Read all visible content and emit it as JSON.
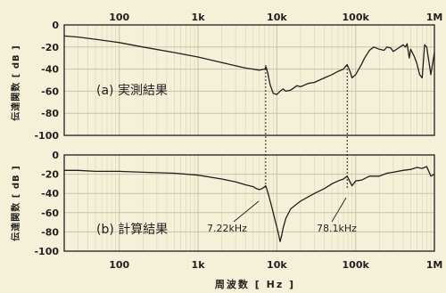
{
  "chart_data": {
    "type": "line",
    "xscale": "log",
    "xlim": [
      20,
      1000000
    ],
    "ylim": [
      -100,
      0
    ],
    "x_tick_labels": [
      "100",
      "1k",
      "10k",
      "100k",
      "1M"
    ],
    "y_tick_labels": [
      "0",
      "-20",
      "-40",
      "-60",
      "-80",
      "-100"
    ],
    "xlabel": "周波数 [ Hz ]",
    "ylabel": "伝達関数 [ dB ]",
    "grid": true,
    "panels": [
      {
        "label": "(a) 実測結果",
        "series": [
          {
            "x": [
              20,
              30,
              50,
              100,
              200,
              500,
              1000,
              2000,
              3000,
              4000,
              5000,
              6000,
              7000,
              7300,
              7700,
              8200,
              9000,
              10000,
              11000,
              12000,
              13000,
              15000,
              18000,
              20000,
              25000,
              30000,
              40000,
              50000,
              60000,
              70000,
              78000,
              85000,
              90000,
              100000,
              110000,
              120000,
              130000,
              150000,
              170000,
              200000,
              230000,
              250000,
              280000,
              300000,
              350000,
              400000,
              430000,
              450000,
              480000,
              500000,
              550000,
              600000,
              650000,
              700000,
              750000,
              800000,
              900000,
              1000000
            ],
            "y": [
              -10,
              -11,
              -13,
              -16,
              -20,
              -25,
              -29,
              -34,
              -37,
              -39,
              -40,
              -41,
              -40,
              -38,
              -44,
              -54,
              -62,
              -63,
              -60,
              -58,
              -60,
              -59,
              -55,
              -56,
              -53,
              -52,
              -48,
              -45,
              -42,
              -40,
              -36,
              -42,
              -48,
              -45,
              -40,
              -35,
              -30,
              -23,
              -20,
              -22,
              -23,
              -20,
              -21,
              -24,
              -21,
              -18,
              -20,
              -17,
              -30,
              -22,
              -28,
              -35,
              -45,
              -48,
              -18,
              -20,
              -45,
              -25
            ]
          }
        ]
      },
      {
        "label": "(b) 計算結果",
        "series": [
          {
            "x": [
              20,
              30,
              50,
              100,
              200,
              500,
              1000,
              2000,
              3000,
              4000,
              5000,
              5500,
              6000,
              6500,
              7000,
              7220,
              7500,
              8000,
              8500,
              9000,
              9500,
              10000,
              10500,
              11000,
              11500,
              12000,
              13000,
              15000,
              20000,
              30000,
              40000,
              50000,
              60000,
              70000,
              78100,
              85000,
              90000,
              100000,
              120000,
              150000,
              200000,
              250000,
              300000,
              400000,
              500000,
              600000,
              700000,
              800000,
              900000,
              1000000
            ],
            "y": [
              -16,
              -16,
              -17,
              -17,
              -18,
              -19,
              -21,
              -25,
              -28,
              -31,
              -33,
              -35,
              -36,
              -35,
              -33,
              -32,
              -36,
              -44,
              -52,
              -60,
              -68,
              -75,
              -82,
              -90,
              -84,
              -76,
              -66,
              -56,
              -48,
              -40,
              -35,
              -30,
              -27,
              -25,
              -22,
              -28,
              -32,
              -27,
              -26,
              -22,
              -22,
              -19,
              -18,
              -16,
              -15,
              -13,
              -14,
              -12,
              -22,
              -20
            ]
          }
        ]
      }
    ],
    "annotations": [
      {
        "text": "7.22kHz",
        "x": 7220
      },
      {
        "text": "78.1kHz",
        "x": 78100
      }
    ]
  }
}
